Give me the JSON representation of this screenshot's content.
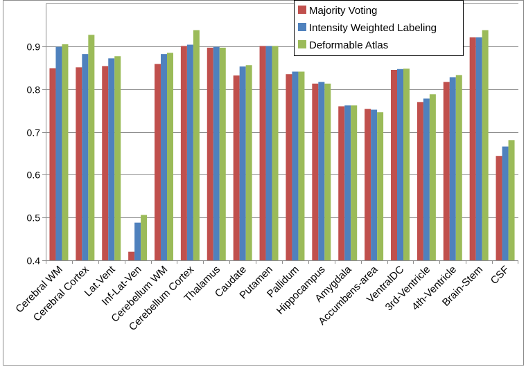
{
  "chart_data": {
    "type": "bar",
    "title": "",
    "xlabel": "",
    "ylabel": "",
    "ylim": [
      0.4,
      1.0
    ],
    "yticks": [
      0.4,
      0.5,
      0.6,
      0.7,
      0.8,
      0.9
    ],
    "ytick_labels": [
      "0.4",
      "0.5",
      "0.6",
      "0.7",
      "0.8",
      "0.9"
    ],
    "grid": true,
    "legend_position": "top-right",
    "categories": [
      "Cerebral WM",
      "Cerebral Cortex",
      "Lat.Vent",
      "Inf-Lat-Ven",
      "Cerebellum WM",
      "Cerebellum Cortex",
      "Thalamus",
      "Caudate",
      "Putamen",
      "Pallidum",
      "Hippocampus",
      "Amygdala",
      "Accumbens-area",
      "VentralDC",
      "3rd-Ventricle",
      "4th-Ventricle",
      "Brain-Stem",
      "CSF"
    ],
    "series": [
      {
        "name": "Majority Voting",
        "color": "#c0504d",
        "values": [
          0.849,
          0.851,
          0.854,
          0.42,
          0.859,
          0.901,
          0.897,
          0.832,
          0.901,
          0.835,
          0.813,
          0.76,
          0.754,
          0.845,
          0.77,
          0.817,
          0.921,
          0.644
        ]
      },
      {
        "name": "Intensity Weighted Labeling",
        "color": "#4f81bd",
        "values": [
          0.899,
          0.882,
          0.872,
          0.488,
          0.882,
          0.904,
          0.899,
          0.853,
          0.901,
          0.841,
          0.817,
          0.762,
          0.752,
          0.847,
          0.778,
          0.828,
          0.921,
          0.666
        ]
      },
      {
        "name": "Deformable Atlas",
        "color": "#9bbb59",
        "values": [
          0.905,
          0.927,
          0.877,
          0.506,
          0.885,
          0.938,
          0.897,
          0.856,
          0.901,
          0.841,
          0.813,
          0.762,
          0.746,
          0.848,
          0.788,
          0.833,
          0.938,
          0.681
        ]
      }
    ]
  }
}
